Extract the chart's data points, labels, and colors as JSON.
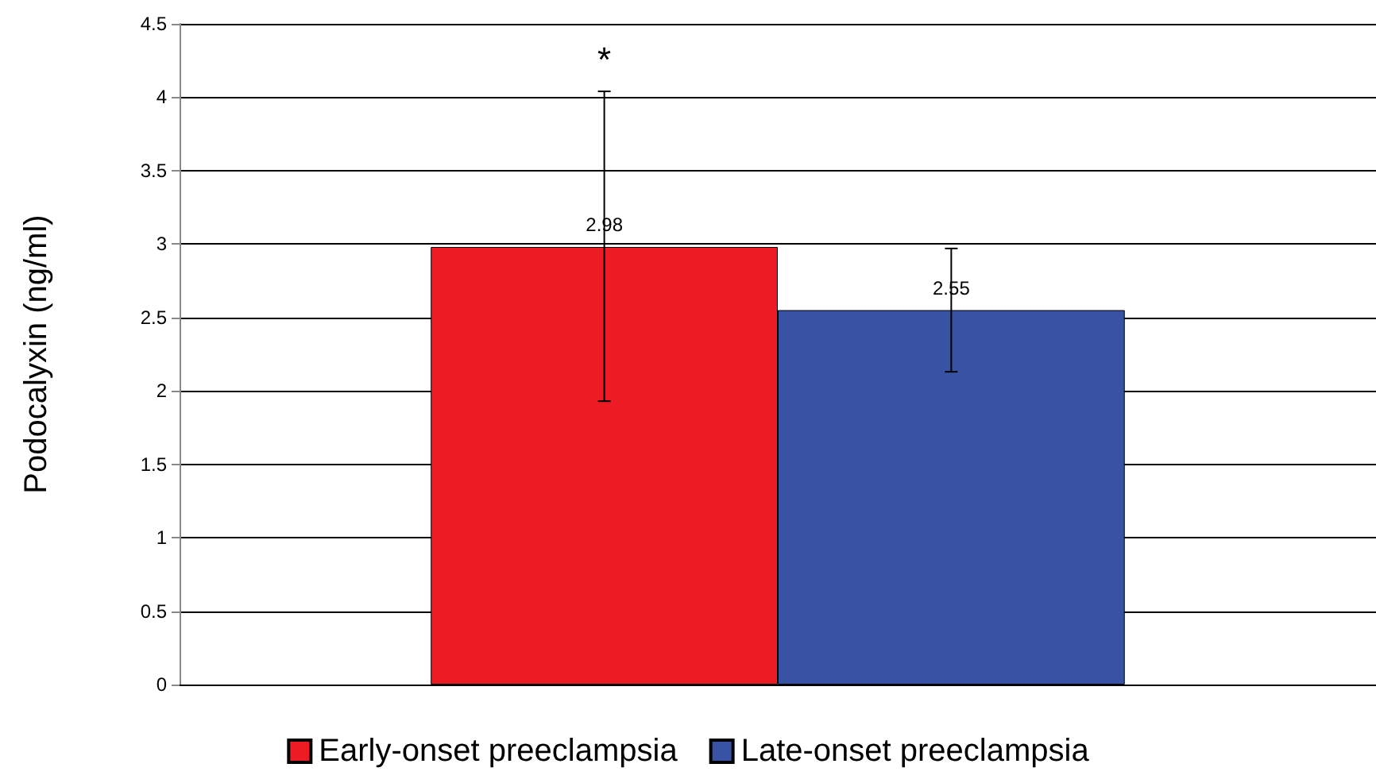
{
  "chart_data": {
    "type": "bar",
    "ylabel": "Podocalyxin (ng/ml)",
    "categories": [
      null
    ],
    "series": [
      {
        "name": "Early-onset preeclampsia",
        "color": "#ed1c24",
        "values": [
          2.98
        ],
        "errors": [
          [
            1.93,
            4.04
          ]
        ]
      },
      {
        "name": "Late-onset preeclampsia",
        "color": "#3953a4",
        "values": [
          2.55
        ],
        "errors": [
          [
            2.13,
            2.97
          ]
        ]
      }
    ],
    "ylim": [
      0,
      4.5
    ],
    "yticks": [
      0,
      0.5,
      1,
      1.5,
      2,
      2.5,
      3,
      3.5,
      4,
      4.5
    ],
    "grid": "y",
    "legend": "bottom",
    "data_labels": true,
    "annotations": [
      "*"
    ]
  }
}
